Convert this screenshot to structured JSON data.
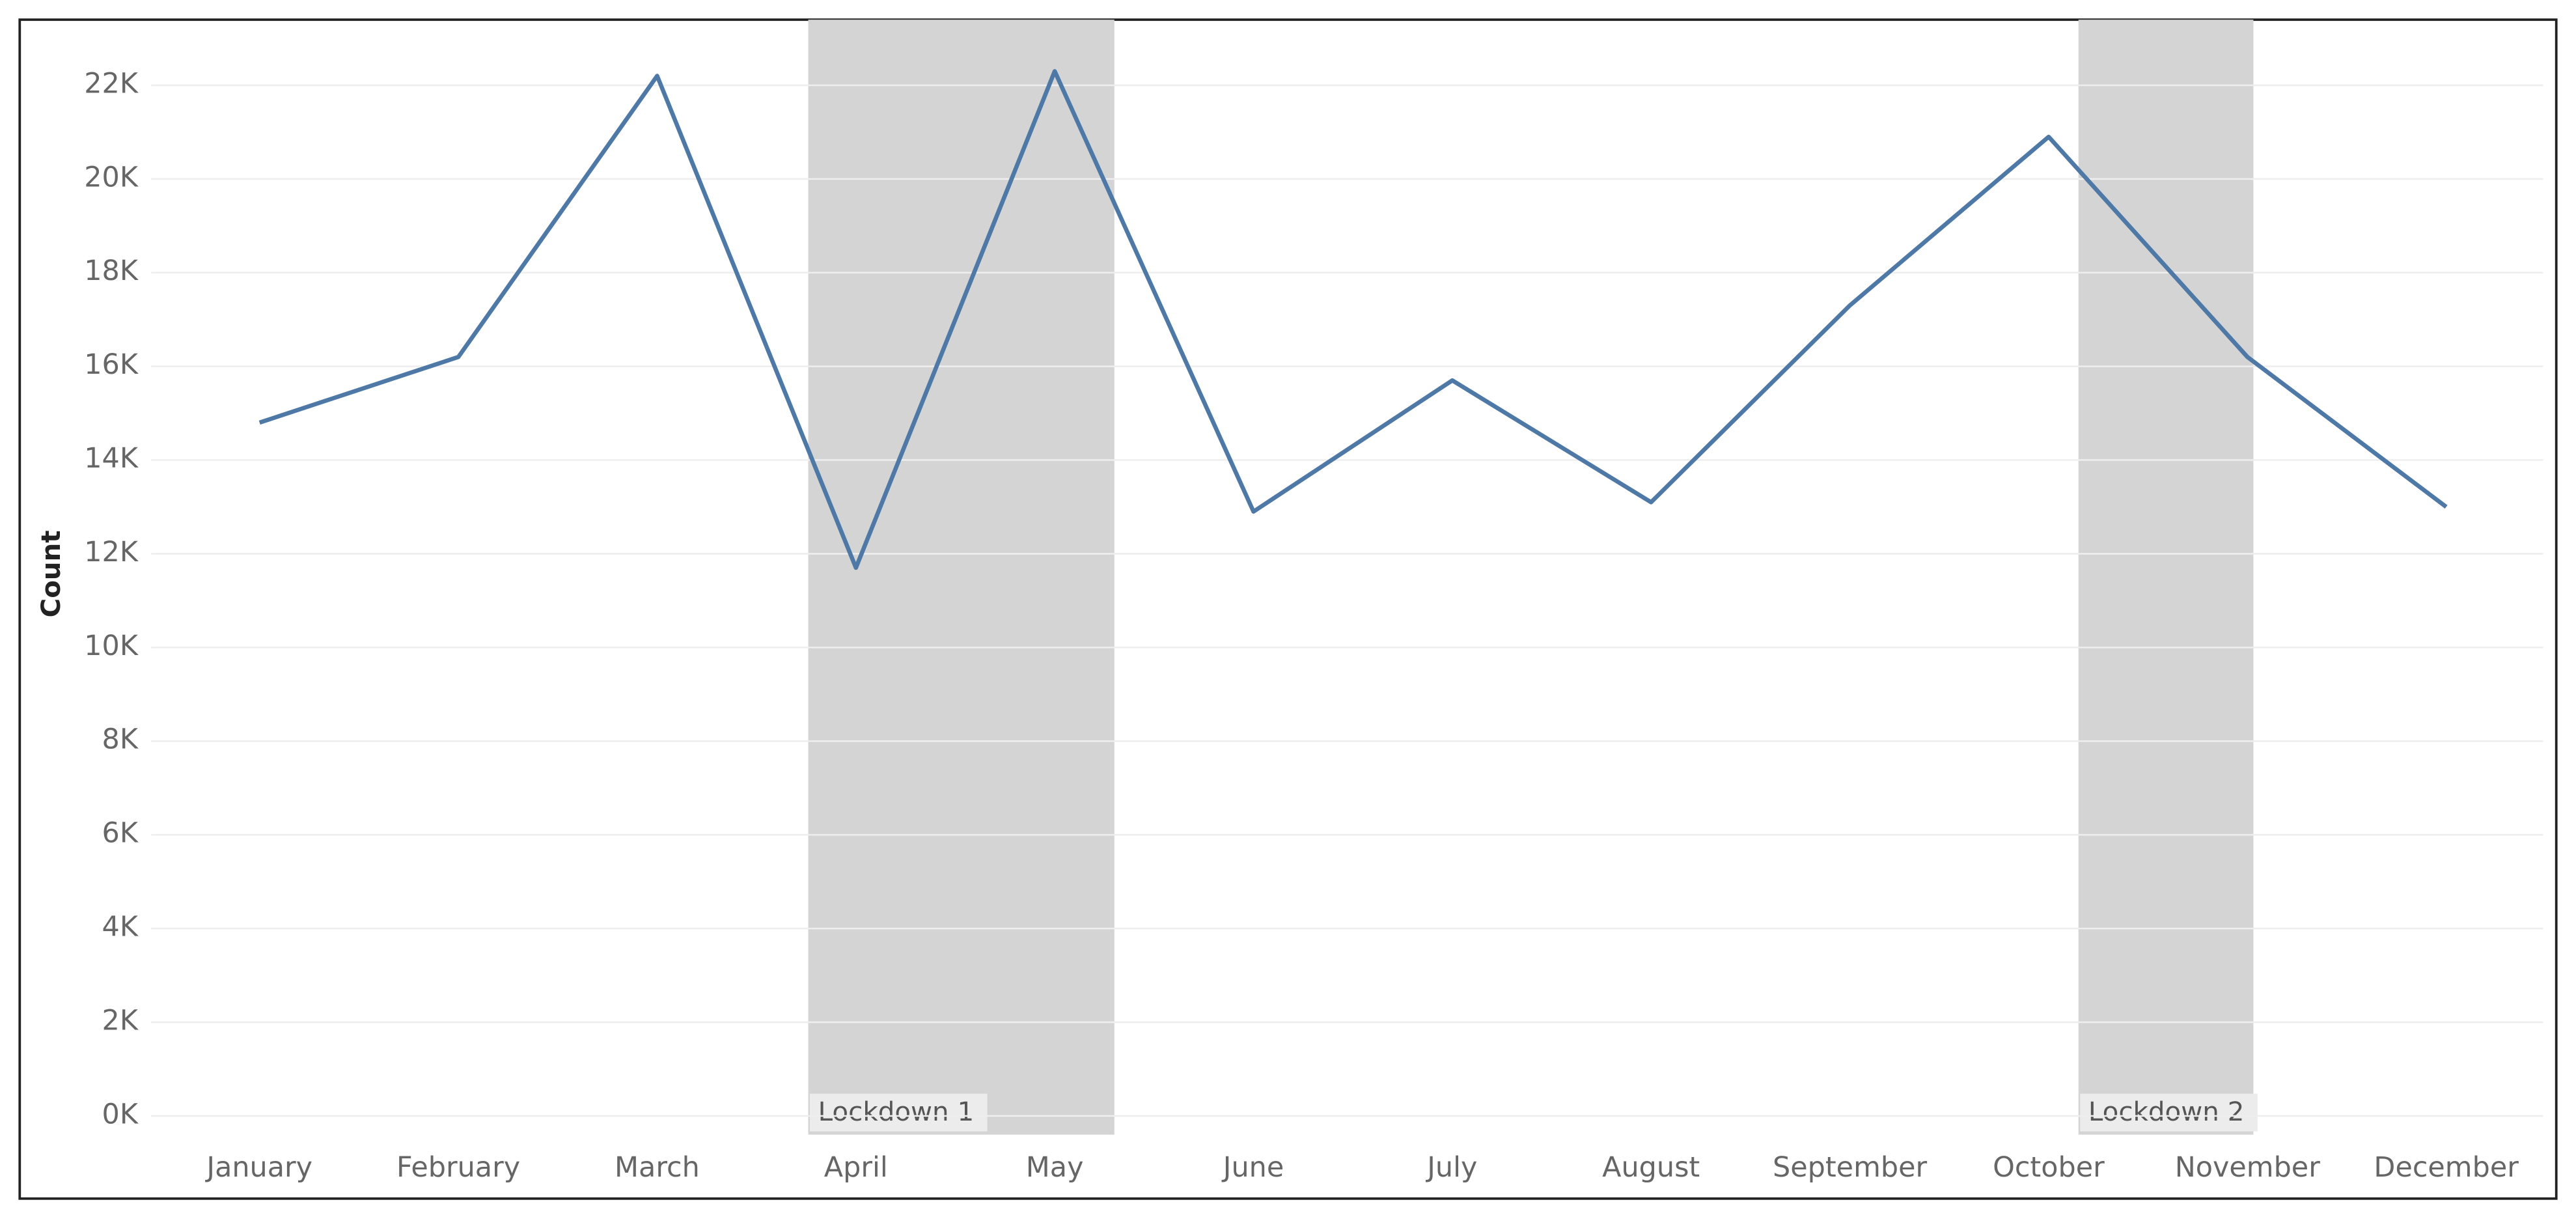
{
  "chart_data": {
    "type": "line",
    "y_label": "Count",
    "categories": [
      "January",
      "February",
      "March",
      "April",
      "May",
      "June",
      "July",
      "August",
      "September",
      "October",
      "November",
      "December"
    ],
    "values": [
      14800,
      16200,
      22200,
      11700,
      22300,
      12900,
      15700,
      13100,
      17300,
      20900,
      16200,
      13000
    ],
    "color": "#4e79a7",
    "ylim": [
      -400,
      23400
    ],
    "yticks": [
      {
        "value": 0,
        "label": "0K"
      },
      {
        "value": 2000,
        "label": "2K"
      },
      {
        "value": 4000,
        "label": "4K"
      },
      {
        "value": 6000,
        "label": "6K"
      },
      {
        "value": 8000,
        "label": "8K"
      },
      {
        "value": 10000,
        "label": "10K"
      },
      {
        "value": 12000,
        "label": "12K"
      },
      {
        "value": 14000,
        "label": "14K"
      },
      {
        "value": 16000,
        "label": "16K"
      },
      {
        "value": 18000,
        "label": "18K"
      },
      {
        "value": 20000,
        "label": "20K"
      },
      {
        "value": 22000,
        "label": "22K"
      }
    ],
    "grid": true,
    "bands": [
      {
        "label": "Lockdown 1",
        "x": [
          2.76,
          4.3
        ],
        "color": "#d4d4d4"
      },
      {
        "label": "Lockdown 2",
        "x": [
          9.15,
          10.03
        ],
        "color": "#d4d4d4"
      }
    ]
  }
}
